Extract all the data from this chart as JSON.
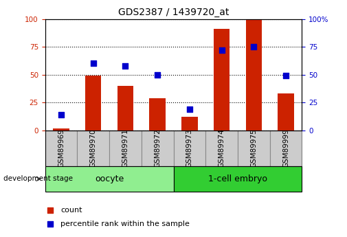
{
  "title": "GDS2387 / 1439720_at",
  "samples": [
    "GSM89969",
    "GSM89970",
    "GSM89971",
    "GSM89972",
    "GSM89973",
    "GSM89974",
    "GSM89975",
    "GSM89999"
  ],
  "count": [
    2,
    49,
    40,
    29,
    12,
    91,
    100,
    33
  ],
  "percentile": [
    14,
    60,
    58,
    50,
    19,
    72,
    75,
    49
  ],
  "groups": [
    {
      "label": "oocyte",
      "start": 0,
      "end": 4,
      "color": "#90EE90"
    },
    {
      "label": "1-cell embryo",
      "start": 4,
      "end": 8,
      "color": "#32CD32"
    }
  ],
  "bar_color": "#CC2200",
  "dot_color": "#0000CC",
  "ylim": [
    0,
    100
  ],
  "yticks": [
    0,
    25,
    50,
    75,
    100
  ],
  "plot_bg": "#ffffff",
  "grid_color": "#000000",
  "left_tick_color": "#CC2200",
  "right_tick_color": "#0000CC",
  "bar_width": 0.5,
  "dot_size": 40,
  "legend_items": [
    {
      "label": "count",
      "color": "#CC2200"
    },
    {
      "label": "percentile rank within the sample",
      "color": "#0000CC"
    }
  ],
  "group_label_fontsize": 9,
  "tick_label_fontsize": 7.5,
  "title_fontsize": 10,
  "dev_stage_label": "development stage",
  "right_ylabel_suffix": "%",
  "sample_box_color": "#CCCCCC",
  "sample_box_edge": "#888888"
}
